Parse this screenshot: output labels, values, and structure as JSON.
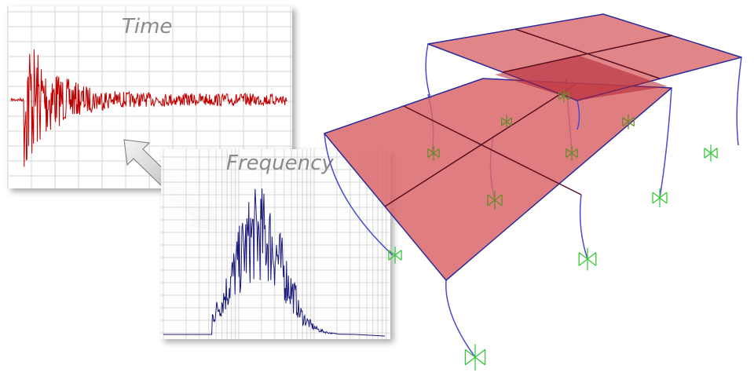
{
  "time_panel": {
    "label": "Time"
  },
  "frequency_panel": {
    "label": "Frequency"
  }
}
